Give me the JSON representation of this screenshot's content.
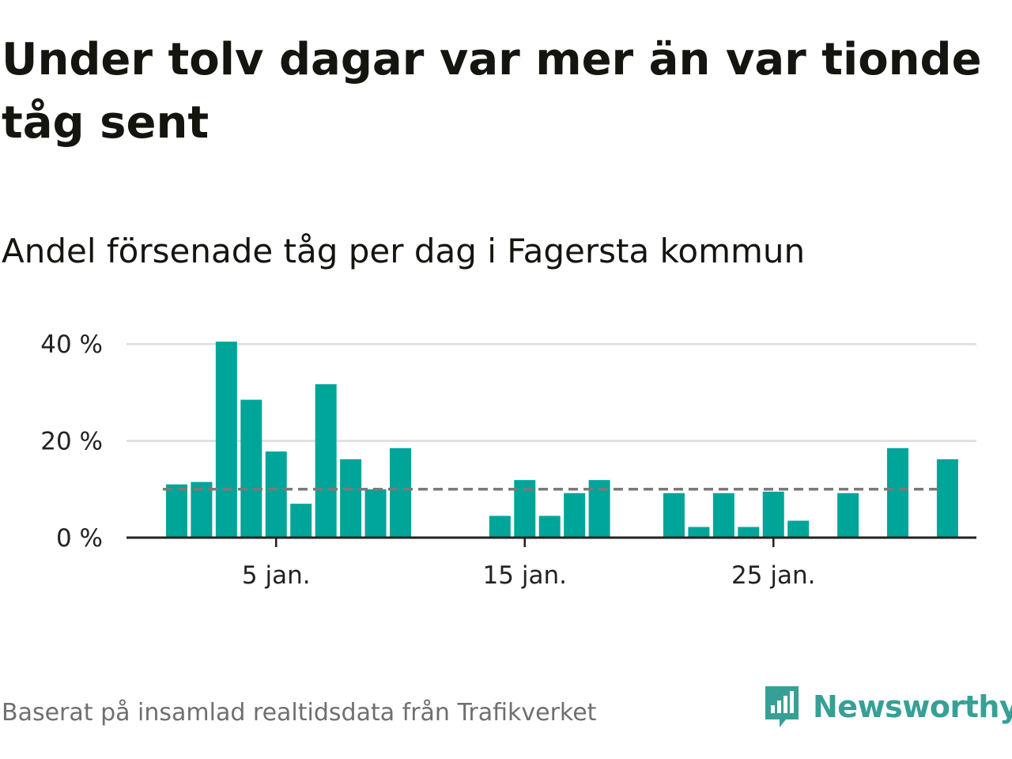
{
  "title": "Under tolv dagar var mer än var tionde tåg sent",
  "subtitle": "Andel försenade tåg per dag i Fagersta kommun",
  "source": "Baserat på insamlad realtidsdata från Trafikverket",
  "brand": {
    "name": "Newsworthy",
    "icon": "newsworthy-logo-icon",
    "color": "#36a096"
  },
  "colors": {
    "bar": "#00a59a",
    "reference_line": "#7a7a7a",
    "grid": "#dddddd",
    "axis": "#222222"
  },
  "chart_data": {
    "type": "bar",
    "xlabel": "",
    "ylabel": "",
    "x_domain": [
      0,
      33
    ],
    "ylim": [
      0,
      40
    ],
    "grid": true,
    "y_ticks": [
      0,
      20,
      40
    ],
    "y_tick_labels": [
      "0 %",
      "20 %",
      "40 %"
    ],
    "x_ticks": [
      5,
      15,
      25
    ],
    "x_tick_labels": [
      "5 jan.",
      "15 jan.",
      "25 jan."
    ],
    "reference_line": {
      "value": 10,
      "style": "dashed"
    },
    "series": [
      {
        "days": [
          1,
          2,
          3,
          4,
          5,
          6,
          7,
          8,
          9,
          10,
          14,
          15,
          16,
          17,
          18,
          21,
          22,
          23,
          24,
          25,
          26,
          28,
          30,
          32
        ],
        "values": [
          11,
          11.5,
          40.5,
          28.5,
          17.8,
          7,
          31.7,
          16.2,
          10,
          18.5,
          4.5,
          11.9,
          4.5,
          9.2,
          11.9,
          9.2,
          2.2,
          9.2,
          2.2,
          9.5,
          3.5,
          9.2,
          18.5,
          16.2
        ]
      }
    ]
  }
}
